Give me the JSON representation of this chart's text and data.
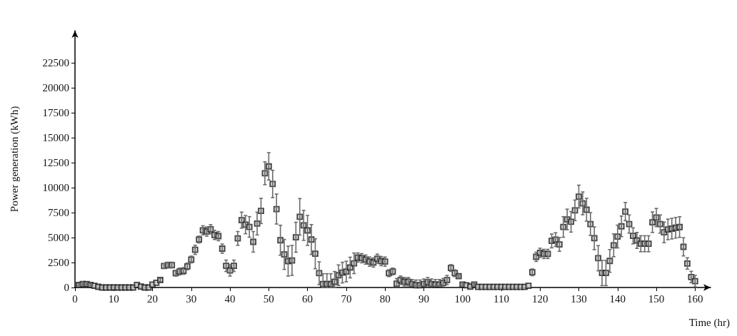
{
  "chart_data": {
    "type": "scatter",
    "xlabel": "Time (hr)",
    "ylabel": "Power generation (kWh)",
    "x": [
      1,
      2,
      3,
      4,
      5,
      6,
      7,
      8,
      9,
      10,
      11,
      12,
      13,
      14,
      15,
      16,
      17,
      18,
      19,
      20,
      21,
      22,
      23,
      24,
      25,
      26,
      27,
      28,
      29,
      30,
      31,
      32,
      33,
      34,
      35,
      36,
      37,
      38,
      39,
      40,
      41,
      42,
      43,
      44,
      45,
      46,
      47,
      48,
      49,
      50,
      51,
      52,
      53,
      54,
      55,
      56,
      57,
      58,
      59,
      60,
      61,
      62,
      63,
      64,
      65,
      66,
      67,
      68,
      69,
      70,
      71,
      72,
      73,
      74,
      75,
      76,
      77,
      78,
      79,
      80,
      81,
      82,
      83,
      84,
      85,
      86,
      87,
      88,
      89,
      90,
      91,
      92,
      93,
      94,
      95,
      96,
      97,
      98,
      99,
      100,
      101,
      102,
      103,
      104,
      105,
      106,
      107,
      108,
      109,
      110,
      111,
      112,
      113,
      114,
      115,
      116,
      117,
      118,
      119,
      120,
      121,
      122,
      123,
      124,
      125,
      126,
      127,
      128,
      129,
      130,
      131,
      132,
      133,
      134,
      135,
      136,
      137,
      138,
      139,
      140,
      141,
      142,
      143,
      144,
      145,
      146,
      147,
      148,
      149,
      150,
      151,
      152,
      153,
      154,
      155,
      156,
      157,
      158,
      159,
      160
    ],
    "series": [
      {
        "color": "#1a1a1a",
        "marker": "square",
        "values": [
          260,
          350,
          350,
          260,
          170,
          70,
          0,
          0,
          0,
          0,
          0,
          0,
          0,
          0,
          0,
          260,
          90,
          0,
          0,
          290,
          480,
          750,
          2150,
          2240,
          2240,
          1430,
          1600,
          1660,
          2110,
          2800,
          3770,
          4800,
          5720,
          5600,
          5830,
          5260,
          5140,
          3890,
          2170,
          1710,
          2170,
          4910,
          6740,
          6290,
          6060,
          4570,
          6400,
          7660,
          11430,
          12120,
          10360,
          7850,
          4730,
          3310,
          2640,
          2710,
          5030,
          7070,
          6220,
          5710,
          4800,
          3380,
          1430,
          350,
          350,
          350,
          570,
          1230,
          1490,
          1600,
          2000,
          2420,
          3000,
          2930,
          2790,
          2590,
          2500,
          2880,
          2640,
          2590,
          1430,
          1600,
          380,
          730,
          570,
          570,
          350,
          230,
          230,
          350,
          530,
          350,
          290,
          290,
          460,
          740,
          1950,
          1430,
          1140,
          290,
          220,
          90,
          290,
          60,
          60,
          60,
          60,
          60,
          60,
          60,
          60,
          60,
          60,
          60,
          60,
          60,
          170,
          1520,
          3070,
          3470,
          3360,
          3360,
          4660,
          4790,
          4310,
          6060,
          6810,
          6570,
          7720,
          9100,
          8420,
          7780,
          6350,
          4930,
          2930,
          1450,
          1450,
          2660,
          4220,
          5100,
          6120,
          7600,
          6350,
          5170,
          4710,
          4380,
          4380,
          4380,
          6530,
          7000,
          6350,
          5520,
          5810,
          5890,
          5980,
          6050,
          4070,
          2400,
          1050,
          640
        ],
        "errors": [
          110,
          110,
          110,
          110,
          null,
          null,
          null,
          null,
          null,
          null,
          null,
          null,
          null,
          null,
          null,
          null,
          null,
          null,
          null,
          null,
          null,
          170,
          230,
          290,
          290,
          290,
          340,
          340,
          340,
          340,
          460,
          340,
          460,
          460,
          460,
          460,
          460,
          460,
          570,
          570,
          570,
          690,
          800,
          910,
          1030,
          1030,
          1140,
          1260,
          1140,
          1370,
          1370,
          1500,
          1500,
          1500,
          1500,
          1500,
          1500,
          1830,
          1500,
          1500,
          1500,
          1500,
          1140,
          [
            0,
            1380
          ],
          [
            0,
            1380
          ],
          [
            0,
            1380
          ],
          [
            0,
            1600
          ],
          1030,
          1030,
          1030,
          1030,
          1030,
          460,
          460,
          460,
          460,
          460,
          460,
          460,
          460,
          340,
          340,
          [
            150,
            900
          ],
          [
            300,
            1150
          ],
          [
            150,
            1000
          ],
          [
            150,
            1000
          ],
          [
            150,
            800
          ],
          [
            150,
            750
          ],
          [
            150,
            750
          ],
          [
            150,
            850
          ],
          [
            150,
            1000
          ],
          [
            150,
            850
          ],
          [
            150,
            800
          ],
          [
            150,
            800
          ],
          [
            150,
            900
          ],
          460,
          340,
          340,
          110,
          110,
          null,
          null,
          110,
          null,
          null,
          null,
          null,
          null,
          null,
          null,
          null,
          null,
          null,
          null,
          null,
          null,
          null,
          340,
          460,
          460,
          460,
          460,
          690,
          690,
          690,
          1030,
          1030,
          1030,
          1030,
          1140,
          1140,
          1140,
          1140,
          1140,
          1260,
          1260,
          1260,
          1140,
          1140,
          1140,
          1030,
          910,
          910,
          800,
          800,
          800,
          800,
          800,
          1030,
          910,
          910,
          1030,
          1030,
          1030,
          1030,
          1030,
          910,
          570,
          570,
          570
        ]
      }
    ],
    "xlim": [
      0,
      164
    ],
    "xticks": [
      0,
      10,
      20,
      30,
      40,
      50,
      60,
      70,
      80,
      90,
      100,
      110,
      120,
      130,
      140,
      150,
      160
    ],
    "ylim": [
      0,
      25700
    ],
    "yticks": [
      0,
      2500,
      5000,
      7500,
      10000,
      12500,
      15000,
      17500,
      20000,
      22500
    ],
    "grid": false
  }
}
